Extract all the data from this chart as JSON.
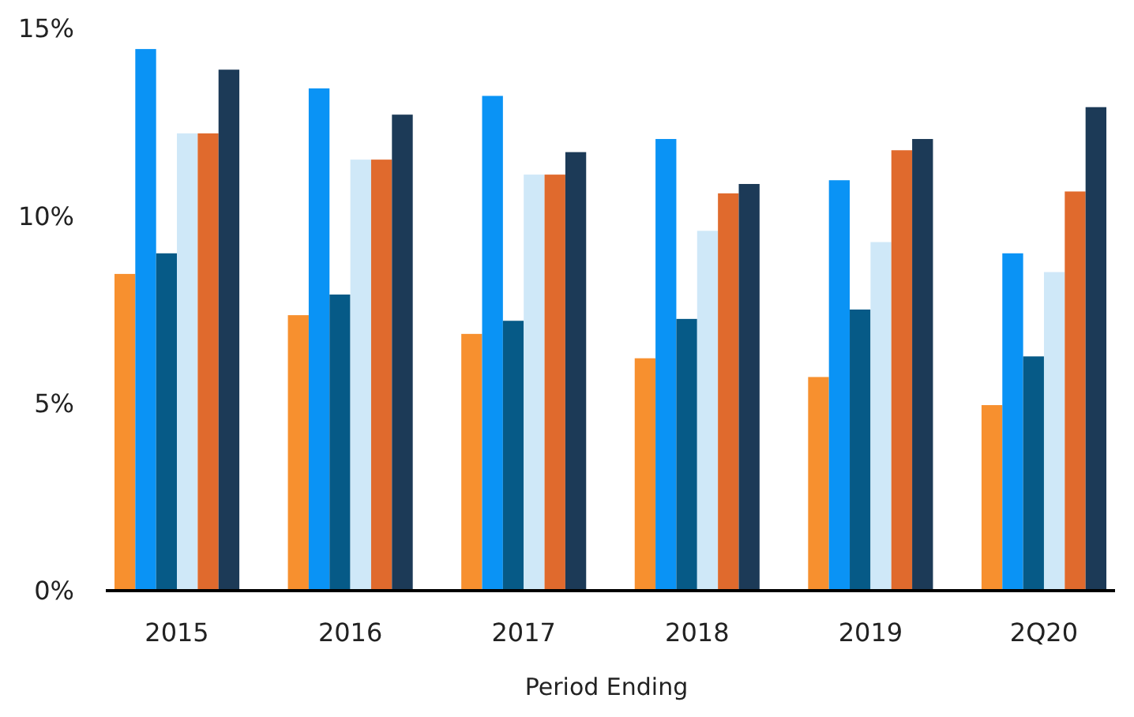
{
  "chart_data": {
    "type": "bar",
    "xlabel": "Period Ending",
    "categories": [
      "2015",
      "2016",
      "2017",
      "2018",
      "2019",
      "2Q20"
    ],
    "series": [
      {
        "color": "#f7902f",
        "values": [
          8.45,
          7.35,
          6.85,
          6.2,
          5.7,
          4.95
        ]
      },
      {
        "color": "#0a93f5",
        "values": [
          14.45,
          13.4,
          13.2,
          12.05,
          10.95,
          9.0
        ]
      },
      {
        "color": "#065a87",
        "values": [
          9.0,
          7.9,
          7.2,
          7.25,
          7.5,
          6.25
        ]
      },
      {
        "color": "#cfe8f8",
        "values": [
          12.2,
          11.5,
          11.1,
          9.6,
          9.3,
          8.5
        ]
      },
      {
        "color": "#e06a2d",
        "values": [
          12.2,
          11.5,
          11.1,
          10.6,
          11.75,
          10.65
        ]
      },
      {
        "color": "#1c3a57",
        "values": [
          13.9,
          12.7,
          11.7,
          10.85,
          12.05,
          12.9
        ]
      }
    ],
    "ylim": [
      0,
      15
    ],
    "yticks": [
      {
        "value": 0,
        "label": "0%"
      },
      {
        "value": 5,
        "label": "5%"
      },
      {
        "value": 10,
        "label": "10%"
      },
      {
        "value": 15,
        "label": "15%"
      }
    ]
  }
}
